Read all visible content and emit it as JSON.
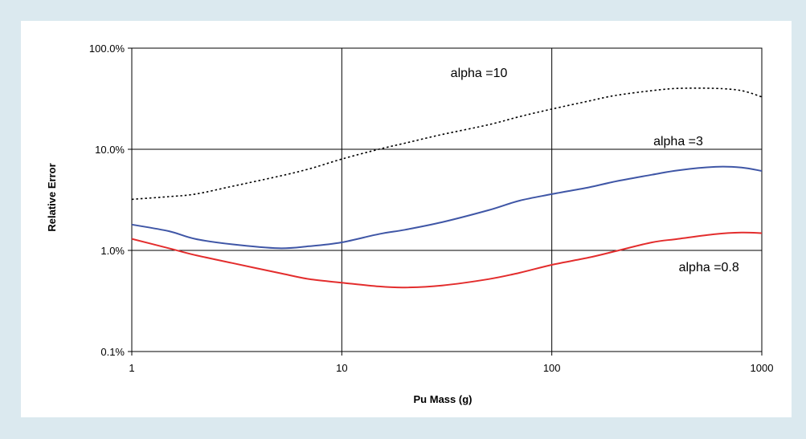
{
  "chart_data": {
    "type": "line",
    "xlabel": "Pu Mass (g)",
    "ylabel": "Relative Error",
    "xscale": "log",
    "yscale": "log",
    "xlim": [
      1,
      1000
    ],
    "ylim": [
      0.001,
      1.0
    ],
    "x_ticks": [
      {
        "value": 1,
        "label": "1"
      },
      {
        "value": 10,
        "label": "10"
      },
      {
        "value": 100,
        "label": "100"
      },
      {
        "value": 1000,
        "label": "1000"
      }
    ],
    "y_ticks": [
      {
        "value": 0.001,
        "label": "0.1%"
      },
      {
        "value": 0.01,
        "label": "1.0%"
      },
      {
        "value": 0.1,
        "label": "10.0%"
      },
      {
        "value": 1.0,
        "label": "100.0%"
      }
    ],
    "grid": true,
    "series": [
      {
        "name": "alpha =10",
        "color": "#000000",
        "dash": "dotted",
        "x": [
          1,
          1.5,
          2,
          3,
          5,
          7,
          10,
          15,
          20,
          30,
          50,
          70,
          100,
          150,
          200,
          300,
          400,
          600,
          800,
          1000
        ],
        "y": [
          0.032,
          0.034,
          0.036,
          0.043,
          0.054,
          0.064,
          0.08,
          0.1,
          0.115,
          0.14,
          0.175,
          0.21,
          0.25,
          0.3,
          0.34,
          0.38,
          0.4,
          0.4,
          0.38,
          0.33
        ]
      },
      {
        "name": "alpha =3",
        "color": "#3f56a6",
        "dash": "solid",
        "x": [
          1,
          1.5,
          2,
          3,
          5,
          7,
          10,
          15,
          20,
          30,
          50,
          70,
          100,
          150,
          200,
          300,
          400,
          600,
          800,
          1000
        ],
        "y": [
          0.018,
          0.0155,
          0.013,
          0.0115,
          0.0105,
          0.011,
          0.012,
          0.0145,
          0.016,
          0.019,
          0.025,
          0.031,
          0.036,
          0.042,
          0.048,
          0.056,
          0.062,
          0.067,
          0.066,
          0.061
        ]
      },
      {
        "name": "alpha =0.8",
        "color": "#e32d2d",
        "dash": "solid",
        "x": [
          1,
          1.5,
          2,
          3,
          5,
          7,
          10,
          15,
          20,
          30,
          50,
          70,
          100,
          150,
          200,
          300,
          400,
          600,
          800,
          1000
        ],
        "y": [
          0.013,
          0.0105,
          0.009,
          0.0075,
          0.006,
          0.0052,
          0.0048,
          0.0044,
          0.0043,
          0.0045,
          0.0052,
          0.006,
          0.0072,
          0.0085,
          0.0098,
          0.012,
          0.013,
          0.0145,
          0.015,
          0.0148
        ]
      }
    ],
    "annotations": [
      {
        "text": "alpha =10",
        "x": 45,
        "y": 0.52
      },
      {
        "text": "alpha =3",
        "x": 400,
        "y": 0.11
      },
      {
        "text": "alpha =0.8",
        "x": 560,
        "y": 0.0062
      }
    ]
  }
}
